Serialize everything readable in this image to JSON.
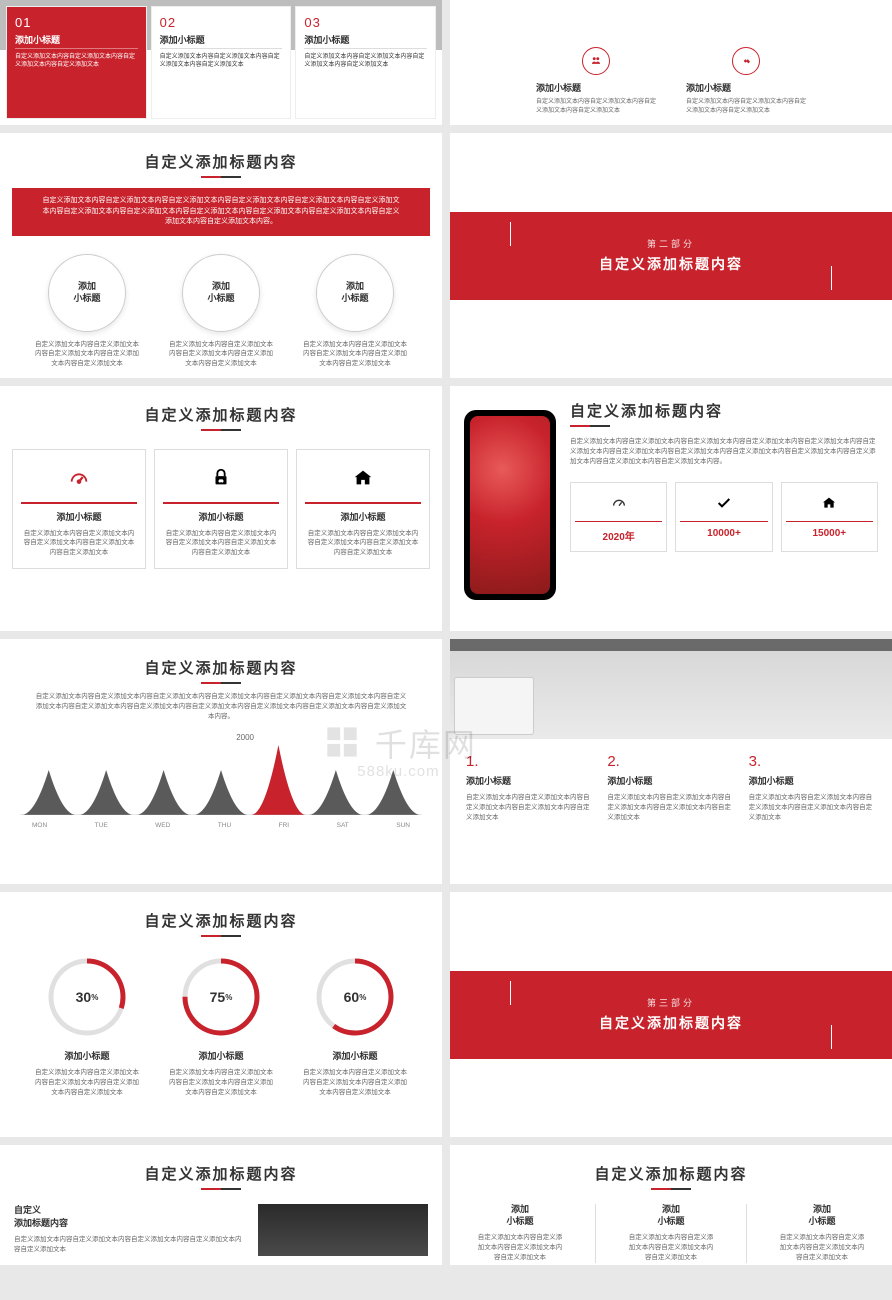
{
  "colors": {
    "primary": "#c8232c",
    "dark": "#333333",
    "gray": "#666666",
    "border": "#dddddd",
    "bg": "#e8e8e8"
  },
  "shared": {
    "section_title": "自定义添加标题内容",
    "sub_title": "添加小标题",
    "sub_title_2line_a": "添加",
    "sub_title_2line_b": "小标题",
    "desc_3line": "自定义添加文本内容自定义添加文本内容自定义添加文本内容自定义添加文本",
    "desc_5line": "自定义添加文本内容自定义添加文本内容自定义添加文本内容自定义添加文本内容自定义添加文本",
    "long_desc": "自定义添加文本内容自定义添加文本内容自定义添加文本内容自定义添加文本内容自定义添加文本内容自定义添加文本内容自定义添加文本内容自定义添加文本内容自定义添加文本内容自定义添加文本内容自定义添加文本内容自定义添加文本内容自定义添加文本内容。"
  },
  "s1": {
    "cards": [
      {
        "num": "01",
        "active": true
      },
      {
        "num": "02",
        "active": false
      },
      {
        "num": "03",
        "active": false
      }
    ]
  },
  "section2": {
    "sub": "第二部分"
  },
  "section3": {
    "sub": "第三部分"
  },
  "s6": {
    "stats": [
      {
        "value": "2020年"
      },
      {
        "value": "10000+"
      },
      {
        "value": "15000+"
      }
    ]
  },
  "s7": {
    "peak_label": "2000",
    "peak_index": 4,
    "days": [
      "MON",
      "TUE",
      "WED",
      "THU",
      "FRI",
      "SAT",
      "SUN"
    ],
    "colors": {
      "peak": "#c8232c",
      "normal": "#5a5a5a"
    }
  },
  "s8": {
    "cols": [
      {
        "num": "1."
      },
      {
        "num": "2."
      },
      {
        "num": "3."
      }
    ]
  },
  "s9": {
    "donuts": [
      {
        "pct": 30,
        "label": "30"
      },
      {
        "pct": 75,
        "label": "75"
      },
      {
        "pct": 60,
        "label": "60"
      }
    ],
    "ring_color": "#c8232c",
    "track_color": "#e0e0e0",
    "stroke_width": 5
  },
  "s11": {
    "left_title_a": "自定义",
    "left_title_b": "添加标题内容"
  },
  "watermark": {
    "main": "千库网",
    "sub": "588ku.com"
  }
}
